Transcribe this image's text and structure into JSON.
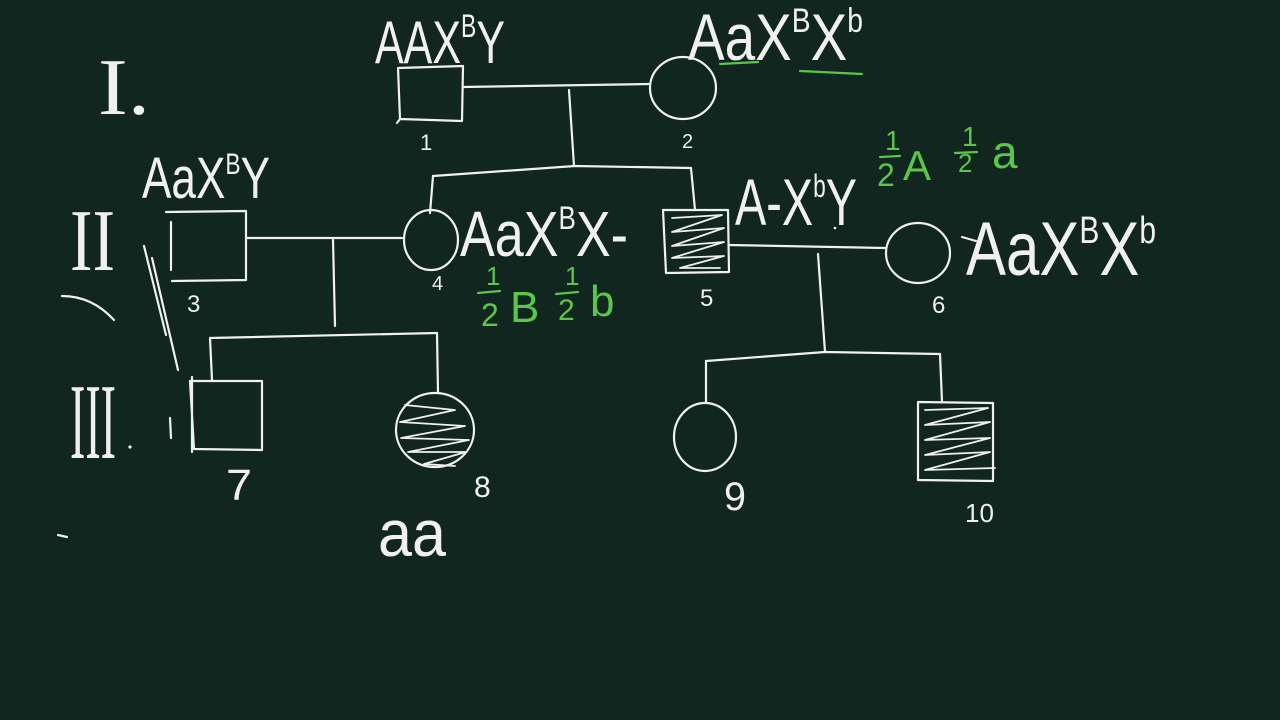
{
  "board": {
    "background_color": "#10261f",
    "ink_color": "#f0f0f0",
    "highlight_color": "#5cc64b"
  },
  "generations": [
    {
      "label": "I."
    },
    {
      "label": "II"
    },
    {
      "label": "III"
    }
  ],
  "individuals": [
    {
      "number": "1",
      "genotype": {
        "base": "AAX",
        "sup": "B",
        "tail": "Y"
      }
    },
    {
      "number": "2",
      "genotype": {
        "base": "AaX",
        "sup": "B",
        "tail": "X",
        "sup2": "b"
      }
    },
    {
      "number": "3",
      "genotype": {
        "base": "AaX",
        "sup": "B",
        "tail": "Y"
      }
    },
    {
      "number": "4",
      "genotype": {
        "base": "AaX",
        "sup": "B",
        "tail": "X-"
      }
    },
    {
      "number": "5",
      "genotype": {
        "base": "A-X",
        "sup": "b",
        "tail": "Y"
      }
    },
    {
      "number": "6",
      "genotype": {
        "base": "AaX",
        "sup": "B",
        "tail": "X",
        "sup2": "b"
      }
    },
    {
      "number": "7"
    },
    {
      "number": "8",
      "genotype_note": "aa"
    },
    {
      "number": "9"
    },
    {
      "number": "10"
    }
  ],
  "green_notes": {
    "top": [
      {
        "numerator": "1",
        "denominator": "2",
        "allele": "A"
      },
      {
        "numerator": "1",
        "denominator": "2",
        "allele": "a"
      }
    ],
    "middle": [
      {
        "numerator": "1",
        "denominator": "2",
        "allele": "B"
      },
      {
        "numerator": "1",
        "denominator": "2",
        "allele": "b"
      }
    ]
  }
}
